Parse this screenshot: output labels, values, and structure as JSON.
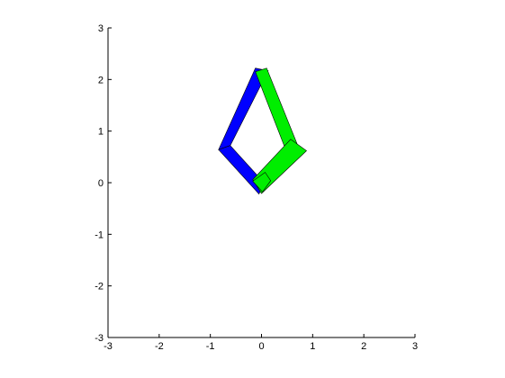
{
  "chart_data": {
    "type": "polygon-plot",
    "title": "",
    "xlabel": "",
    "ylabel": "",
    "xlim": [
      -3,
      3
    ],
    "ylim": [
      -3,
      3
    ],
    "grid": false,
    "legend": "none",
    "x_ticks": [
      "-3",
      "-2",
      "-1",
      "0",
      "1",
      "2",
      "3"
    ],
    "y_ticks": [
      "3",
      "2",
      "1",
      "0",
      "-1",
      "-2",
      "-3"
    ],
    "x_tick_values": [
      -3,
      -2,
      -1,
      0,
      1,
      2,
      3
    ],
    "y_tick_values": [
      3,
      2,
      1,
      0,
      -1,
      -2,
      -3
    ],
    "shapes": [
      {
        "color": "#0000ff",
        "points": [
          [
            -0.12,
            2.22
          ],
          [
            0.13,
            2.17
          ],
          [
            -0.61,
            0.72
          ],
          [
            -0.84,
            0.64
          ]
        ]
      },
      {
        "color": "#0000ff",
        "points": [
          [
            -0.84,
            0.64
          ],
          [
            -0.61,
            0.72
          ],
          [
            0.05,
            0.0
          ],
          [
            -0.05,
            -0.22
          ]
        ]
      },
      {
        "color": "#00ee00",
        "points": [
          [
            -0.12,
            2.15
          ],
          [
            0.1,
            2.22
          ],
          [
            0.75,
            0.62
          ],
          [
            0.52,
            0.52
          ]
        ]
      },
      {
        "color": "#00ee00",
        "points": [
          [
            -0.17,
            0.06
          ],
          [
            0.57,
            0.84
          ],
          [
            0.88,
            0.62
          ],
          [
            0.0,
            -0.21
          ]
        ]
      },
      {
        "color": "#00ee00",
        "points": [
          [
            -0.17,
            0.03
          ],
          [
            0.07,
            0.2
          ],
          [
            0.18,
            0.04
          ],
          [
            0.02,
            -0.18
          ]
        ]
      }
    ]
  }
}
